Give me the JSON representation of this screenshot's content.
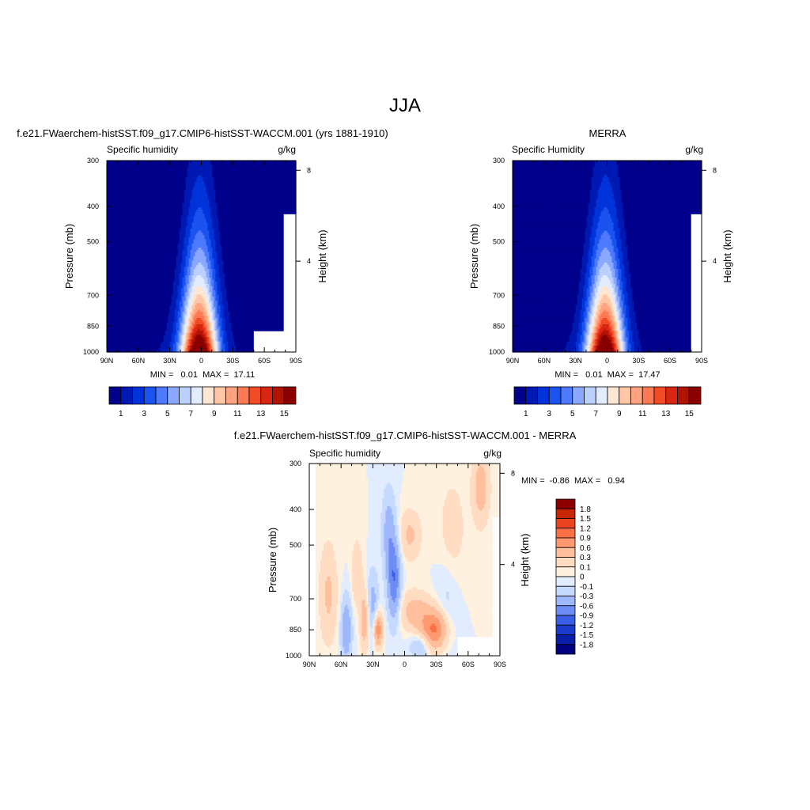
{
  "figure": {
    "title": "JJA"
  },
  "colors": {
    "abs_scale": [
      "#00008a",
      "#0019b3",
      "#0033d9",
      "#1a53f0",
      "#4d7aff",
      "#8aa8ff",
      "#bcd0ff",
      "#e3ecff",
      "#ffe6d1",
      "#ffc7a6",
      "#ffa480",
      "#ff7a52",
      "#f24a24",
      "#d92612",
      "#b31200",
      "#8a0000"
    ],
    "diff_scale": [
      "#000080",
      "#0a1fa8",
      "#1c3ccc",
      "#3a5ee6",
      "#6e8cf5",
      "#9fb8fb",
      "#c6d9ff",
      "#e1ecff",
      "#fff1e0",
      "#ffdcc2",
      "#ffbf9c",
      "#ff9a70",
      "#fa6f45",
      "#ea4320",
      "#c92606",
      "#8c0000"
    ]
  },
  "axes_text": {
    "ylabel": "Pressure (mb)",
    "y2label": "Height (km)",
    "var_name_model": "Specific humidity",
    "var_name_obs": "Specific Humidity",
    "var_name_diff": "Specific humidity",
    "units": "g/kg"
  },
  "chart_data": [
    {
      "type": "heatmap",
      "title": "f.e21.FWaerchem-histSST.f09_g17.CMIP6-histSST-WACCM.001 (yrs 1881-1910)",
      "subtitle_left": "Specific humidity",
      "subtitle_right": "g/kg",
      "ylabel": "Pressure (mb)",
      "y2label": "Height (km)",
      "x_ticks": [
        "90N",
        "60N",
        "30N",
        "0",
        "30S",
        "60S",
        "90S"
      ],
      "y_ticks": [
        "300",
        "400",
        "500",
        "700",
        "850",
        "1000"
      ],
      "y2_ticks": [
        "8",
        "4"
      ],
      "min_label": "MIN =   0.01  MAX =  17.11",
      "min": 0.01,
      "max": 17.11,
      "colorbar_labels": [
        "1",
        "3",
        "5",
        "7",
        "9",
        "11",
        "13",
        "15"
      ],
      "peak_lat": 0,
      "peak": 17.11,
      "missing": "surface, ~45S-90S below 900 mb"
    },
    {
      "type": "heatmap",
      "title": "MERRA",
      "subtitle_left": "Specific Humidity",
      "subtitle_right": "g/kg",
      "ylabel": "Pressure (mb)",
      "y2label": "Height (km)",
      "x_ticks": [
        "90N",
        "60N",
        "30N",
        "0",
        "30S",
        "60S",
        "90S"
      ],
      "y_ticks": [
        "300",
        "400",
        "500",
        "700",
        "850",
        "1000"
      ],
      "y2_ticks": [
        "8",
        "4"
      ],
      "min_label": "MIN =   0.01  MAX =  17.47",
      "min": 0.01,
      "max": 17.47,
      "colorbar_labels": [
        "1",
        "3",
        "5",
        "7",
        "9",
        "11",
        "13",
        "15"
      ],
      "peak_lat": 0,
      "peak": 17.47
    },
    {
      "type": "heatmap",
      "title": "f.e21.FWaerchem-histSST.f09_g17.CMIP6-histSST-WACCM.001 - MERRA",
      "subtitle_left": "Specific humidity",
      "subtitle_right": "g/kg",
      "ylabel": "Pressure (mb)",
      "y2label": "Height (km)",
      "x_ticks": [
        "90N",
        "60N",
        "30N",
        "0",
        "30S",
        "60S",
        "90S"
      ],
      "y_ticks": [
        "300",
        "400",
        "500",
        "700",
        "850",
        "1000"
      ],
      "y2_ticks": [
        "8",
        "4"
      ],
      "min_label": "MIN =  -0.86  MAX =   0.94",
      "min": -0.86,
      "max": 0.94,
      "colorbar_labels": [
        "1.8",
        "1.5",
        "1.2",
        "0.9",
        "0.6",
        "0.3",
        "0.1",
        "0",
        "-0.1",
        "-0.3",
        "-0.6",
        "-0.9",
        "-1.2",
        "-1.5",
        "-1.8"
      ]
    }
  ]
}
